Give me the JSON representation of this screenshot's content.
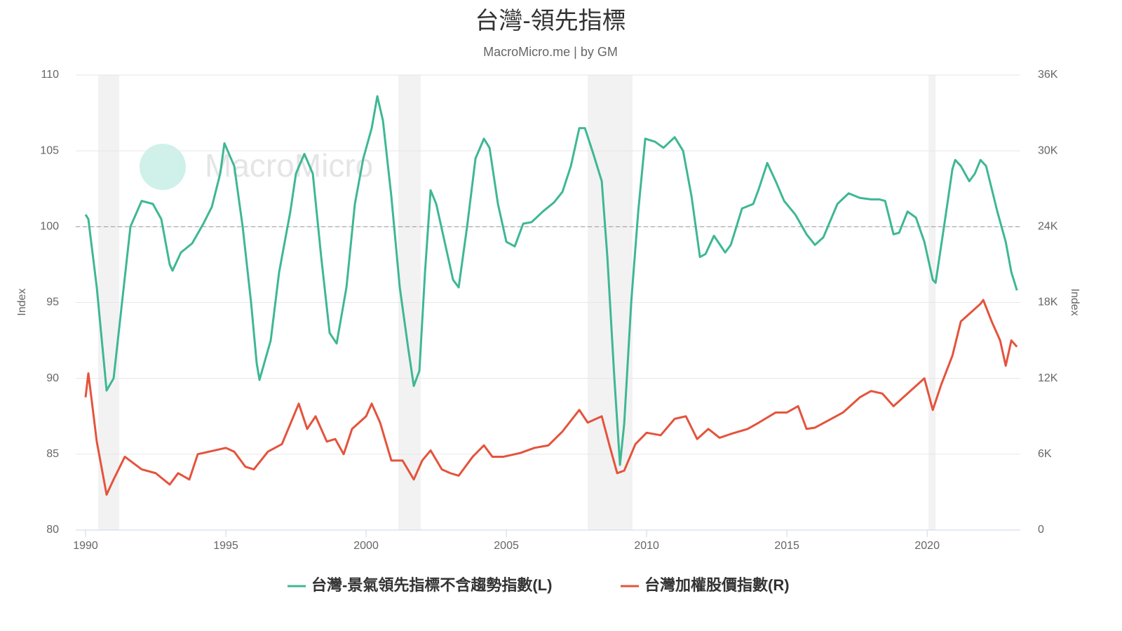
{
  "chart_data": {
    "type": "line",
    "title": "台灣-領先指標",
    "subtitle": "MacroMicro.me | by GM",
    "watermark": "MacroMicro",
    "ylabel": "Index",
    "y2label": "Index",
    "xlim": [
      1989.65,
      2023.32
    ],
    "xticks": [
      1990,
      1995,
      2000,
      2005,
      2010,
      2015,
      2020
    ],
    "ylim": [
      80,
      110
    ],
    "yticks": [
      80,
      85,
      90,
      95,
      100,
      105,
      110
    ],
    "y2lim": [
      0,
      36000
    ],
    "y2ticks": [
      {
        "value": 0,
        "label": "0"
      },
      {
        "value": 6000,
        "label": "6K"
      },
      {
        "value": 12000,
        "label": "12K"
      },
      {
        "value": 18000,
        "label": "18K"
      },
      {
        "value": 24000,
        "label": "24K"
      },
      {
        "value": 30000,
        "label": "30K"
      },
      {
        "value": 36000,
        "label": "36K"
      }
    ],
    "grid": true,
    "reference_line": 100,
    "shaded_periods": [
      [
        1990.45,
        1991.2
      ],
      [
        2001.15,
        2001.95
      ],
      [
        2007.9,
        2009.5
      ],
      [
        2020.05,
        2020.3
      ]
    ],
    "legend": "bottom",
    "series": [
      {
        "name": "台灣-景氣領先指標不含趨勢指數(L)",
        "color": "#3eb794",
        "axis": "y",
        "x": [
          1990.0,
          1990.1,
          1990.4,
          1990.75,
          1991.0,
          1991.3,
          1991.6,
          1992.0,
          1992.4,
          1992.7,
          1993.0,
          1993.1,
          1993.4,
          1993.8,
          1994.2,
          1994.5,
          1994.8,
          1994.95,
          1995.3,
          1995.6,
          1995.9,
          1996.1,
          1996.2,
          1996.6,
          1996.9,
          1997.3,
          1997.5,
          1997.8,
          1998.1,
          1998.4,
          1998.7,
          1998.95,
          1999.3,
          1999.6,
          1999.9,
          2000.2,
          2000.4,
          2000.6,
          2000.9,
          2001.2,
          2001.5,
          2001.7,
          2001.9,
          2002.1,
          2002.3,
          2002.5,
          2002.8,
          2003.1,
          2003.3,
          2003.6,
          2003.9,
          2004.2,
          2004.4,
          2004.7,
          2005.0,
          2005.3,
          2005.6,
          2005.9,
          2006.3,
          2006.7,
          2007.0,
          2007.3,
          2007.6,
          2007.8,
          2008.1,
          2008.4,
          2008.6,
          2008.85,
          2009.05,
          2009.2,
          2009.45,
          2009.7,
          2009.95,
          2010.3,
          2010.6,
          2011.0,
          2011.3,
          2011.6,
          2011.9,
          2012.1,
          2012.4,
          2012.8,
          2013.0,
          2013.4,
          2013.8,
          2014.0,
          2014.3,
          2014.6,
          2014.9,
          2015.3,
          2015.7,
          2016.0,
          2016.3,
          2016.8,
          2017.2,
          2017.6,
          2018.0,
          2018.3,
          2018.5,
          2018.8,
          2019.0,
          2019.3,
          2019.6,
          2019.9,
          2020.2,
          2020.3,
          2020.6,
          2020.9,
          2021.0,
          2021.2,
          2021.5,
          2021.7,
          2021.9,
          2022.1,
          2022.5,
          2022.8,
          2023.0,
          2023.2
        ],
        "values": [
          100.8,
          100.5,
          96,
          89.2,
          90,
          95,
          100,
          101.7,
          101.5,
          100.5,
          97.5,
          97.1,
          98.3,
          98.9,
          100.2,
          101.3,
          103.5,
          105.5,
          104,
          100,
          95,
          91,
          89.9,
          92.5,
          97,
          101,
          103.5,
          104.8,
          103.5,
          98,
          93,
          92.3,
          96,
          101.5,
          104.5,
          106.5,
          108.6,
          107,
          102,
          96,
          92,
          89.5,
          90.5,
          97,
          102.4,
          101.5,
          99,
          96.5,
          96,
          100,
          104.5,
          105.8,
          105.2,
          101.5,
          99,
          98.7,
          100.2,
          100.3,
          101,
          101.6,
          102.3,
          104,
          106.5,
          106.5,
          104.8,
          103,
          98,
          90,
          84.3,
          87,
          95,
          101,
          105.8,
          105.6,
          105.2,
          105.9,
          105,
          102,
          98,
          98.2,
          99.4,
          98.3,
          98.8,
          101.2,
          101.5,
          102.5,
          104.2,
          103,
          101.7,
          100.8,
          99.5,
          98.8,
          99.3,
          101.5,
          102.2,
          101.9,
          101.8,
          101.8,
          101.7,
          99.5,
          99.6,
          101,
          100.6,
          99,
          96.5,
          96.3,
          100,
          103.8,
          104.4,
          104,
          103,
          103.5,
          104.4,
          104,
          101,
          99,
          97,
          95.8
        ]
      },
      {
        "name": "台灣加權股價指數(R)",
        "color": "#e5533c",
        "axis": "y2",
        "x": [
          1990.0,
          1990.1,
          1990.4,
          1990.75,
          1991.0,
          1991.4,
          1992.0,
          1992.5,
          1993.0,
          1993.3,
          1993.7,
          1994.0,
          1994.6,
          1995.0,
          1995.3,
          1995.7,
          1996.0,
          1996.5,
          1997.0,
          1997.6,
          1997.9,
          1998.2,
          1998.6,
          1998.9,
          1999.2,
          1999.5,
          2000.0,
          2000.2,
          2000.5,
          2000.9,
          2001.3,
          2001.7,
          2002.0,
          2002.3,
          2002.7,
          2003.0,
          2003.3,
          2003.8,
          2004.2,
          2004.5,
          2004.9,
          2005.5,
          2006.0,
          2006.5,
          2007.0,
          2007.6,
          2007.9,
          2008.4,
          2008.7,
          2008.95,
          2009.2,
          2009.6,
          2010.0,
          2010.5,
          2011.0,
          2011.4,
          2011.8,
          2012.2,
          2012.6,
          2013.0,
          2013.6,
          2014.0,
          2014.6,
          2015.0,
          2015.4,
          2015.7,
          2016.0,
          2016.5,
          2017.0,
          2017.6,
          2018.0,
          2018.4,
          2018.8,
          2019.3,
          2019.9,
          2020.2,
          2020.5,
          2020.9,
          2021.2,
          2021.6,
          2021.9,
          2022.0,
          2022.3,
          2022.6,
          2022.8,
          2023.0,
          2023.2
        ],
        "values": [
          10500,
          12400,
          7000,
          2800,
          4000,
          5800,
          4800,
          4500,
          3600,
          4500,
          4000,
          6000,
          6300,
          6500,
          6200,
          5000,
          4800,
          6200,
          6800,
          10000,
          8000,
          9000,
          7000,
          7200,
          6000,
          8000,
          9000,
          10000,
          8500,
          5500,
          5500,
          4000,
          5500,
          6300,
          4800,
          4500,
          4300,
          5800,
          6700,
          5800,
          5800,
          6100,
          6500,
          6700,
          7800,
          9500,
          8500,
          9000,
          6500,
          4500,
          4700,
          6800,
          7700,
          7500,
          8800,
          9000,
          7200,
          8000,
          7300,
          7600,
          8000,
          8500,
          9300,
          9300,
          9800,
          8000,
          8100,
          8700,
          9300,
          10500,
          11000,
          10800,
          9800,
          10800,
          12000,
          9500,
          11500,
          13800,
          16500,
          17300,
          17900,
          18200,
          16500,
          15000,
          13000,
          15000,
          14500
        ]
      }
    ]
  }
}
